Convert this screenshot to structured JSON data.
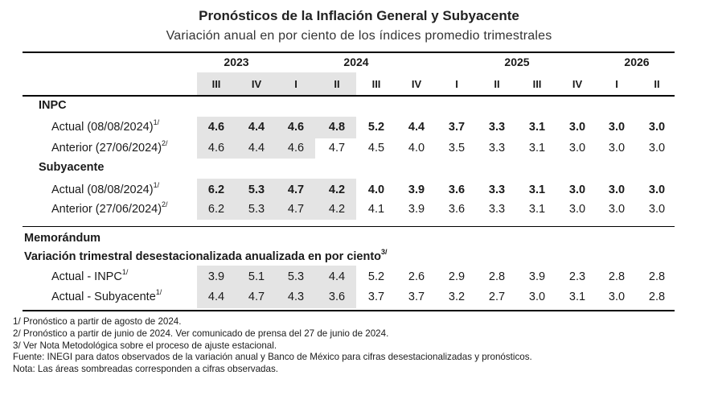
{
  "title": "Pronósticos de la Inflación General y Subyacente",
  "subtitle": "Variación anual en por ciento de los índices promedio trimestrales",
  "years": [
    "2023",
    "2024",
    "2025",
    "2026"
  ],
  "quarters": [
    "III",
    "IV",
    "I",
    "II",
    "III",
    "IV",
    "I",
    "II",
    "III",
    "IV",
    "I",
    "II"
  ],
  "shaded_columns": 4,
  "shade_color": "#e4e4e4",
  "sections": [
    {
      "name": "INPC",
      "rows": [
        {
          "label": "Actual (08/08/2024)",
          "sup": "1/",
          "bold": true,
          "values": [
            "4.6",
            "4.4",
            "4.6",
            "4.8",
            "5.2",
            "4.4",
            "3.7",
            "3.3",
            "3.1",
            "3.0",
            "3.0",
            "3.0"
          ]
        },
        {
          "label": "Anterior (27/06/2024)",
          "sup": "2/",
          "bold": false,
          "shaded_count": 3,
          "values": [
            "4.6",
            "4.4",
            "4.6",
            "4.7",
            "4.5",
            "4.0",
            "3.5",
            "3.3",
            "3.1",
            "3.0",
            "3.0",
            "3.0"
          ]
        }
      ]
    },
    {
      "name": "Subyacente",
      "rows": [
        {
          "label": "Actual (08/08/2024)",
          "sup": "1/",
          "bold": true,
          "values": [
            "6.2",
            "5.3",
            "4.7",
            "4.2",
            "4.0",
            "3.9",
            "3.6",
            "3.3",
            "3.1",
            "3.0",
            "3.0",
            "3.0"
          ]
        },
        {
          "label": "Anterior (27/06/2024)",
          "sup": "2/",
          "bold": false,
          "values": [
            "6.2",
            "5.3",
            "4.7",
            "4.2",
            "4.1",
            "3.9",
            "3.6",
            "3.3",
            "3.1",
            "3.0",
            "3.0",
            "3.0"
          ]
        }
      ]
    }
  ],
  "memo": {
    "title": "Memorándum",
    "subtitle": "Variación trimestral desestacionalizada anualizada en por ciento",
    "subtitle_sup": "3/",
    "rows": [
      {
        "label": "Actual - INPC",
        "sup": "1/",
        "values": [
          "3.9",
          "5.1",
          "5.3",
          "4.4",
          "5.2",
          "2.6",
          "2.9",
          "2.8",
          "3.9",
          "2.3",
          "2.8",
          "2.8"
        ]
      },
      {
        "label": "Actual - Subyacente",
        "sup": "1/",
        "values": [
          "4.4",
          "4.7",
          "4.3",
          "3.6",
          "3.7",
          "3.7",
          "3.2",
          "2.7",
          "3.0",
          "3.1",
          "3.0",
          "2.8"
        ]
      }
    ]
  },
  "notes": [
    "1/ Pronóstico a partir de agosto de 2024.",
    "2/ Pronóstico a partir de junio de 2024. Ver comunicado de prensa del 27 de junio de 2024.",
    "3/ Ver Nota Metodológica sobre el proceso de ajuste estacional.",
    "Fuente: INEGI para datos observados de la variación anual y Banco de México para cifras desestacionalizadas y pronósticos.",
    "Nota: Las áreas sombreadas corresponden a cifras observadas."
  ]
}
